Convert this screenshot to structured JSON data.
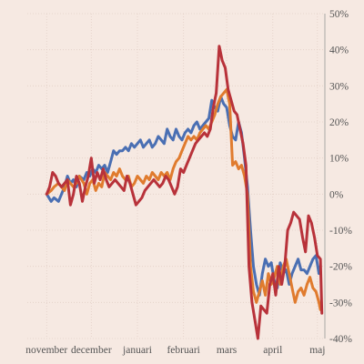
{
  "chart_data": {
    "type": "line",
    "title": "",
    "xlabel": "",
    "ylabel": "",
    "ylim": [
      -40,
      50
    ],
    "y_ticks": [
      50,
      40,
      30,
      20,
      10,
      0,
      -10,
      -20,
      -30,
      -40
    ],
    "y_tick_labels": [
      "50%",
      "40%",
      "30%",
      "20%",
      "10%",
      "0%",
      "-10%",
      "-20%",
      "-30%",
      "-40%"
    ],
    "y_axis_side": "right",
    "grid": true,
    "legend": "none",
    "x_ticks": [
      {
        "label": "november",
        "pos": 0
      },
      {
        "label": "december",
        "pos": 30
      },
      {
        "label": "januari",
        "pos": 61
      },
      {
        "label": "februari",
        "pos": 92
      },
      {
        "label": "mars",
        "pos": 121
      },
      {
        "label": "april",
        "pos": 152
      },
      {
        "label": "maj",
        "pos": 182
      }
    ],
    "x_range": [
      -13,
      187
    ],
    "series": [
      {
        "color": "#4a6fb3",
        "points": [
          [
            0,
            0
          ],
          [
            3,
            -2
          ],
          [
            5,
            -1
          ],
          [
            8,
            -2
          ],
          [
            10,
            0
          ],
          [
            12,
            2
          ],
          [
            14,
            5
          ],
          [
            16,
            3
          ],
          [
            18,
            4
          ],
          [
            20,
            2
          ],
          [
            22,
            5
          ],
          [
            25,
            4
          ],
          [
            27,
            6
          ],
          [
            29,
            5
          ],
          [
            31,
            7
          ],
          [
            33,
            6
          ],
          [
            35,
            8
          ],
          [
            37,
            7
          ],
          [
            39,
            8
          ],
          [
            41,
            6
          ],
          [
            43,
            9
          ],
          [
            45,
            12
          ],
          [
            47,
            11
          ],
          [
            49,
            12
          ],
          [
            51,
            12
          ],
          [
            53,
            13
          ],
          [
            55,
            12
          ],
          [
            57,
            14
          ],
          [
            59,
            13
          ],
          [
            61,
            14
          ],
          [
            63,
            15
          ],
          [
            65,
            13
          ],
          [
            67,
            14
          ],
          [
            69,
            15
          ],
          [
            71,
            13
          ],
          [
            73,
            14
          ],
          [
            75,
            16
          ],
          [
            77,
            15
          ],
          [
            79,
            14
          ],
          [
            81,
            18
          ],
          [
            83,
            16
          ],
          [
            85,
            15
          ],
          [
            87,
            18
          ],
          [
            89,
            16
          ],
          [
            91,
            15
          ],
          [
            93,
            17
          ],
          [
            95,
            18
          ],
          [
            97,
            17
          ],
          [
            99,
            19
          ],
          [
            101,
            20
          ],
          [
            103,
            18
          ],
          [
            105,
            19
          ],
          [
            107,
            20
          ],
          [
            109,
            21
          ],
          [
            111,
            26
          ],
          [
            113,
            24
          ],
          [
            115,
            23
          ],
          [
            117,
            27
          ],
          [
            119,
            25
          ],
          [
            121,
            24
          ],
          [
            123,
            19
          ],
          [
            125,
            16
          ],
          [
            127,
            15
          ],
          [
            129,
            20
          ],
          [
            131,
            17
          ],
          [
            133,
            10
          ],
          [
            135,
            2
          ],
          [
            137,
            -10
          ],
          [
            139,
            -20
          ],
          [
            141,
            -25
          ],
          [
            143,
            -28
          ],
          [
            145,
            -22
          ],
          [
            147,
            -18
          ],
          [
            149,
            -20
          ],
          [
            151,
            -19
          ],
          [
            153,
            -24
          ],
          [
            155,
            -26
          ],
          [
            157,
            -19
          ],
          [
            159,
            -22
          ],
          [
            161,
            -21
          ],
          [
            163,
            -25
          ],
          [
            165,
            -22
          ],
          [
            167,
            -20
          ],
          [
            169,
            -18
          ],
          [
            171,
            -21
          ],
          [
            173,
            -21
          ],
          [
            175,
            -22
          ],
          [
            177,
            -20
          ],
          [
            179,
            -18
          ],
          [
            181,
            -17
          ],
          [
            183,
            -22
          ],
          [
            184,
            -20
          ]
        ]
      },
      {
        "color": "#e07b2e",
        "points": [
          [
            0,
            0
          ],
          [
            3,
            1
          ],
          [
            5,
            2
          ],
          [
            8,
            3
          ],
          [
            10,
            2
          ],
          [
            12,
            1
          ],
          [
            14,
            4
          ],
          [
            16,
            3
          ],
          [
            18,
            2
          ],
          [
            20,
            3
          ],
          [
            22,
            5
          ],
          [
            25,
            3
          ],
          [
            27,
            0
          ],
          [
            29,
            3
          ],
          [
            31,
            4
          ],
          [
            33,
            1
          ],
          [
            35,
            3
          ],
          [
            37,
            2
          ],
          [
            39,
            6
          ],
          [
            41,
            5
          ],
          [
            43,
            4
          ],
          [
            45,
            6
          ],
          [
            47,
            5
          ],
          [
            49,
            7
          ],
          [
            51,
            5
          ],
          [
            53,
            4
          ],
          [
            55,
            5
          ],
          [
            57,
            2
          ],
          [
            59,
            3
          ],
          [
            61,
            5
          ],
          [
            63,
            4
          ],
          [
            65,
            3
          ],
          [
            67,
            5
          ],
          [
            69,
            4
          ],
          [
            71,
            6
          ],
          [
            73,
            5
          ],
          [
            75,
            4
          ],
          [
            77,
            6
          ],
          [
            79,
            5
          ],
          [
            81,
            6
          ],
          [
            83,
            4
          ],
          [
            85,
            7
          ],
          [
            87,
            9
          ],
          [
            89,
            10
          ],
          [
            91,
            12
          ],
          [
            93,
            14
          ],
          [
            95,
            16
          ],
          [
            97,
            15
          ],
          [
            99,
            16
          ],
          [
            101,
            15
          ],
          [
            103,
            17
          ],
          [
            105,
            18
          ],
          [
            107,
            19
          ],
          [
            109,
            18
          ],
          [
            111,
            20
          ],
          [
            113,
            22
          ],
          [
            115,
            25
          ],
          [
            117,
            27
          ],
          [
            119,
            28
          ],
          [
            121,
            29
          ],
          [
            123,
            25
          ],
          [
            125,
            8
          ],
          [
            127,
            9
          ],
          [
            129,
            7
          ],
          [
            131,
            8
          ],
          [
            133,
            5
          ],
          [
            135,
            0
          ],
          [
            137,
            -20
          ],
          [
            139,
            -27
          ],
          [
            141,
            -30
          ],
          [
            143,
            -27
          ],
          [
            145,
            -24
          ],
          [
            147,
            -28
          ],
          [
            149,
            -22
          ],
          [
            151,
            -25
          ],
          [
            153,
            -23
          ],
          [
            155,
            -20
          ],
          [
            157,
            -25
          ],
          [
            159,
            -20
          ],
          [
            161,
            -18
          ],
          [
            163,
            -22
          ],
          [
            165,
            -26
          ],
          [
            167,
            -30
          ],
          [
            169,
            -27
          ],
          [
            171,
            -26
          ],
          [
            173,
            -28
          ],
          [
            175,
            -25
          ],
          [
            177,
            -23
          ],
          [
            179,
            -26
          ],
          [
            181,
            -27
          ],
          [
            183,
            -30
          ],
          [
            184,
            -32
          ]
        ]
      },
      {
        "color": "#b8323a",
        "points": [
          [
            0,
            0
          ],
          [
            2,
            2
          ],
          [
            4,
            6
          ],
          [
            6,
            5
          ],
          [
            8,
            3
          ],
          [
            10,
            2
          ],
          [
            12,
            3
          ],
          [
            14,
            4
          ],
          [
            16,
            -3
          ],
          [
            18,
            0
          ],
          [
            20,
            5
          ],
          [
            22,
            3
          ],
          [
            24,
            -2
          ],
          [
            26,
            2
          ],
          [
            28,
            5
          ],
          [
            30,
            10
          ],
          [
            32,
            3
          ],
          [
            34,
            6
          ],
          [
            36,
            4
          ],
          [
            38,
            7
          ],
          [
            40,
            4
          ],
          [
            42,
            2
          ],
          [
            44,
            3
          ],
          [
            46,
            4
          ],
          [
            48,
            3
          ],
          [
            50,
            2
          ],
          [
            52,
            1
          ],
          [
            54,
            5
          ],
          [
            56,
            3
          ],
          [
            58,
            0
          ],
          [
            60,
            -3
          ],
          [
            62,
            -2
          ],
          [
            64,
            -1
          ],
          [
            66,
            1
          ],
          [
            68,
            2
          ],
          [
            70,
            3
          ],
          [
            72,
            4
          ],
          [
            74,
            3
          ],
          [
            76,
            2
          ],
          [
            78,
            3
          ],
          [
            80,
            5
          ],
          [
            82,
            4
          ],
          [
            84,
            2
          ],
          [
            86,
            0
          ],
          [
            88,
            2
          ],
          [
            90,
            7
          ],
          [
            92,
            6
          ],
          [
            94,
            8
          ],
          [
            96,
            10
          ],
          [
            98,
            12
          ],
          [
            100,
            14
          ],
          [
            102,
            15
          ],
          [
            104,
            16
          ],
          [
            106,
            17
          ],
          [
            108,
            16
          ],
          [
            110,
            18
          ],
          [
            112,
            24
          ],
          [
            114,
            28
          ],
          [
            116,
            41
          ],
          [
            118,
            37
          ],
          [
            120,
            35
          ],
          [
            122,
            29
          ],
          [
            124,
            26
          ],
          [
            126,
            23
          ],
          [
            128,
            22
          ],
          [
            130,
            18
          ],
          [
            132,
            14
          ],
          [
            134,
            8
          ],
          [
            136,
            -20
          ],
          [
            138,
            -30
          ],
          [
            140,
            -35
          ],
          [
            142,
            -40
          ],
          [
            144,
            -31
          ],
          [
            146,
            -32
          ],
          [
            148,
            -33
          ],
          [
            150,
            -25
          ],
          [
            152,
            -22
          ],
          [
            154,
            -28
          ],
          [
            156,
            -20
          ],
          [
            158,
            -25
          ],
          [
            160,
            -20
          ],
          [
            162,
            -10
          ],
          [
            164,
            -8
          ],
          [
            166,
            -5
          ],
          [
            168,
            -6
          ],
          [
            170,
            -7
          ],
          [
            172,
            -12
          ],
          [
            174,
            -16
          ],
          [
            176,
            -6
          ],
          [
            178,
            -8
          ],
          [
            180,
            -12
          ],
          [
            182,
            -17
          ],
          [
            184,
            -18
          ],
          [
            185,
            -33
          ]
        ]
      }
    ]
  }
}
